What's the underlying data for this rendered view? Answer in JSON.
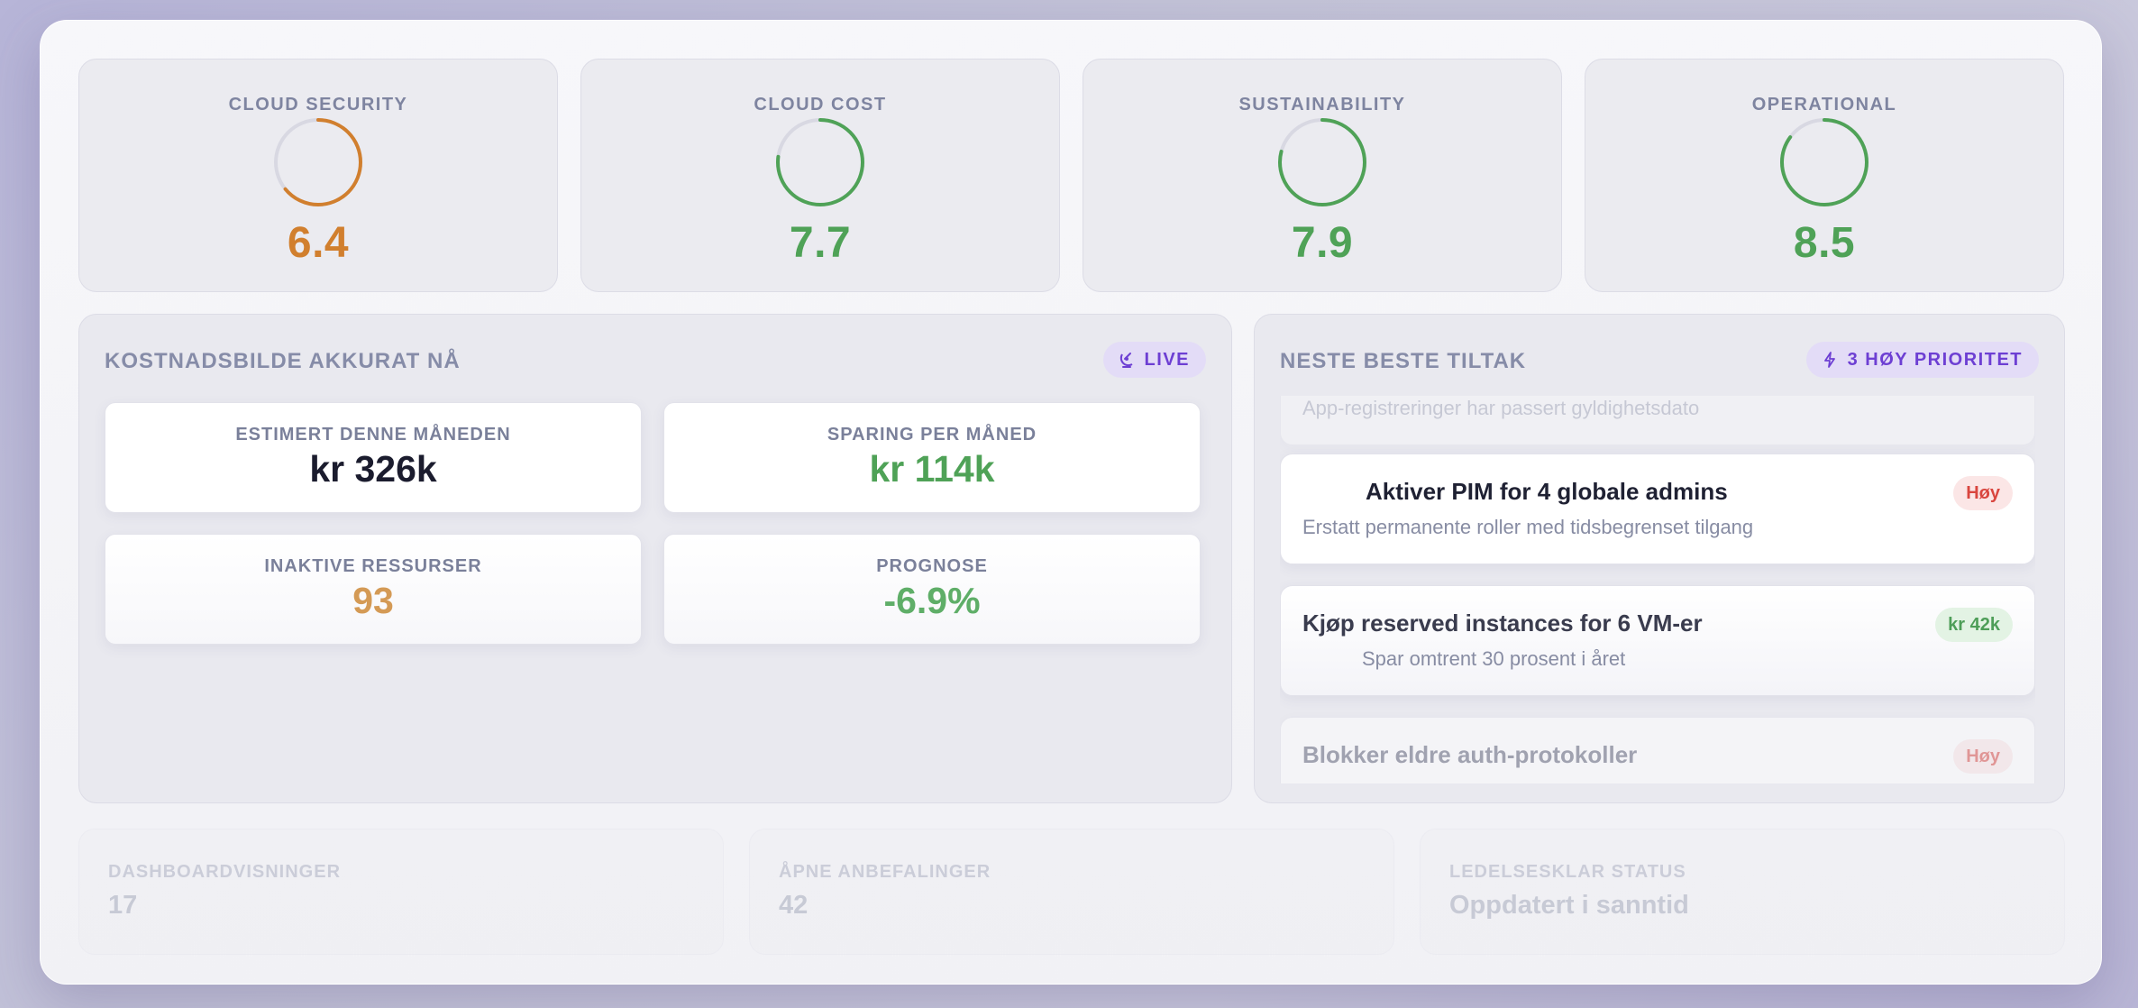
{
  "scores": [
    {
      "title": "CLOUD SECURITY",
      "value": "6.4",
      "fraction": 0.64,
      "color": "#d17f2e"
    },
    {
      "title": "CLOUD COST",
      "value": "7.7",
      "fraction": 0.77,
      "color": "#4fa257"
    },
    {
      "title": "SUSTAINABILITY",
      "value": "7.9",
      "fraction": 0.79,
      "color": "#4fa257"
    },
    {
      "title": "OPERATIONAL",
      "value": "8.5",
      "fraction": 0.85,
      "color": "#4fa257"
    }
  ],
  "cost_panel": {
    "title": "KOSTNADSBILDE AKKURAT NÅ",
    "live_label": "LIVE",
    "live_icon": "satellite-icon",
    "stats": [
      {
        "label": "ESTIMERT DENNE MÅNEDEN",
        "value": "kr 326k",
        "color": "#1b1c2e"
      },
      {
        "label": "SPARING PER MÅNED",
        "value": "kr 114k",
        "color": "#4fa257"
      },
      {
        "label": "INAKTIVE RESSURSER",
        "value": "93",
        "color": "#d49a55"
      },
      {
        "label": "PROGNOSE",
        "value": "-6.9%",
        "color": "#5fae68"
      }
    ]
  },
  "actions_panel": {
    "title": "NESTE BESTE TILTAK",
    "priority_label": "3 HØY PRIORITET",
    "priority_icon": "lightning-icon",
    "items": [
      {
        "title": "",
        "subtitle": "App-registreringer har passert gyldighetsdato",
        "badge": ""
      },
      {
        "title": "Aktiver PIM for 4 globale admins",
        "subtitle": "Erstatt permanente roller med tidsbegrenset tilgang",
        "badge": "Høy"
      },
      {
        "title": "Kjøp reserved instances for 6 VM-er",
        "subtitle": "Spar omtrent 30 prosent i året",
        "badge": "kr 42k"
      },
      {
        "title": "Blokker eldre auth-protokoller",
        "subtitle": "",
        "badge": "Høy"
      }
    ]
  },
  "bottom": [
    {
      "label": "DASHBOARDVISNINGER",
      "value": "17"
    },
    {
      "label": "ÅPNE ANBEFALINGER",
      "value": "42"
    },
    {
      "label": "LEDELSESKLAR STATUS",
      "value": "Oppdatert i sanntid"
    }
  ]
}
